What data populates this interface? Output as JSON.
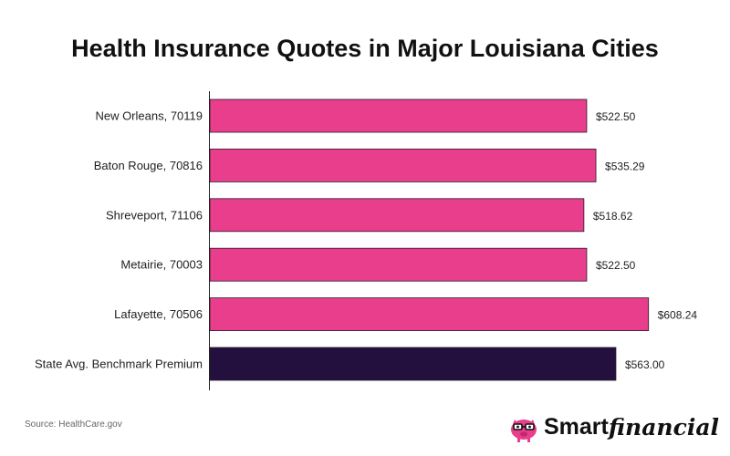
{
  "chart_data": {
    "type": "bar",
    "orientation": "horizontal",
    "title": "Health Insurance Quotes in Major Louisiana Cities",
    "categories": [
      "New Orleans, 70119",
      "Baton Rouge, 70816",
      "Shreveport, 71106",
      "Metairie, 70003",
      "Lafayette, 70506",
      "State Avg. Benchmark Premium"
    ],
    "values": [
      522.5,
      535.29,
      518.62,
      522.5,
      608.24,
      563.0
    ],
    "value_labels": [
      "$522.50",
      "$535.29",
      "$518.62",
      "$522.50",
      "$608.24",
      "$563.00"
    ],
    "bar_colors": [
      "#e83e8c",
      "#e83e8c",
      "#e83e8c",
      "#e83e8c",
      "#e83e8c",
      "#24103f"
    ],
    "xlim": [
      0,
      620
    ],
    "grid": false,
    "legend": "none"
  },
  "footer": {
    "source": "Source: HealthCare.gov",
    "brand_smart": "Smart",
    "brand_financial": "financial"
  },
  "colors": {
    "bar": "#e83e8c",
    "benchmark_bar": "#24103f",
    "mascot": "#e83e8c"
  },
  "icons": {
    "logo": "piggy-bank-with-glasses-icon"
  }
}
